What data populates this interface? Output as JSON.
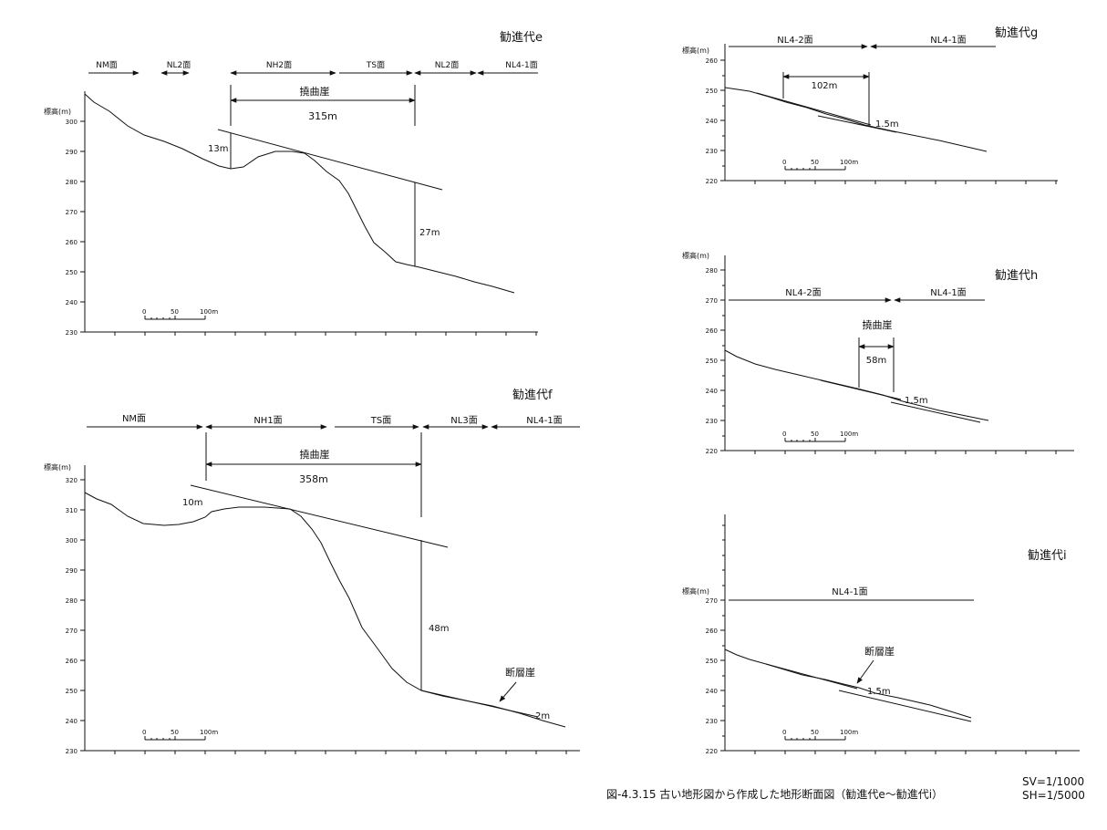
{
  "caption": "図-4.3.15 古い地形図から作成した地形断面図（勧進代e～勧進代i）",
  "scale_v": "SV=1/1000",
  "scale_h": "SH=1/5000",
  "y_axis_label": "標高(m)",
  "scale_bar": {
    "zero": "0",
    "mid": "50",
    "end": "100m"
  },
  "panels": {
    "e": {
      "title": "勧進代e",
      "y_ticks": [
        "300",
        "290",
        "280",
        "270",
        "260",
        "250",
        "240",
        "230"
      ],
      "surfaces": [
        "NM面",
        "NL2面",
        "NH2面",
        "TS面",
        "NL2面",
        "NL4-1面"
      ],
      "feature": "撓曲崖",
      "width": "315m",
      "offsets": [
        "13m",
        "27m"
      ]
    },
    "f": {
      "title": "勧進代f",
      "y_ticks": [
        "320",
        "310",
        "300",
        "290",
        "280",
        "270",
        "260",
        "250",
        "240",
        "230"
      ],
      "surfaces": [
        "NM面",
        "NH1面",
        "TS面",
        "NL3面",
        "NL4-1面"
      ],
      "feature": "撓曲崖",
      "width": "358m",
      "offsets": [
        "10m",
        "48m",
        "2m"
      ],
      "fault_label": "断層崖"
    },
    "g": {
      "title": "勧進代g",
      "y_ticks": [
        "260",
        "250",
        "240",
        "230",
        "220"
      ],
      "surfaces": [
        "NL4-2面",
        "NL4-1面"
      ],
      "width": "102m",
      "offset": "1.5m"
    },
    "h": {
      "title": "勧進代h",
      "y_ticks": [
        "280",
        "270",
        "260",
        "250",
        "240",
        "230",
        "220"
      ],
      "surfaces": [
        "NL4-2面",
        "NL4-1面"
      ],
      "feature": "撓曲崖",
      "width": "58m",
      "offset": "1.5m"
    },
    "i": {
      "title": "勧進代i",
      "y_ticks": [
        "270",
        "260",
        "250",
        "240",
        "230",
        "220"
      ],
      "surfaces": [
        "NL4-1面"
      ],
      "fault_label": "断層崖",
      "offset": "1.5m"
    }
  }
}
